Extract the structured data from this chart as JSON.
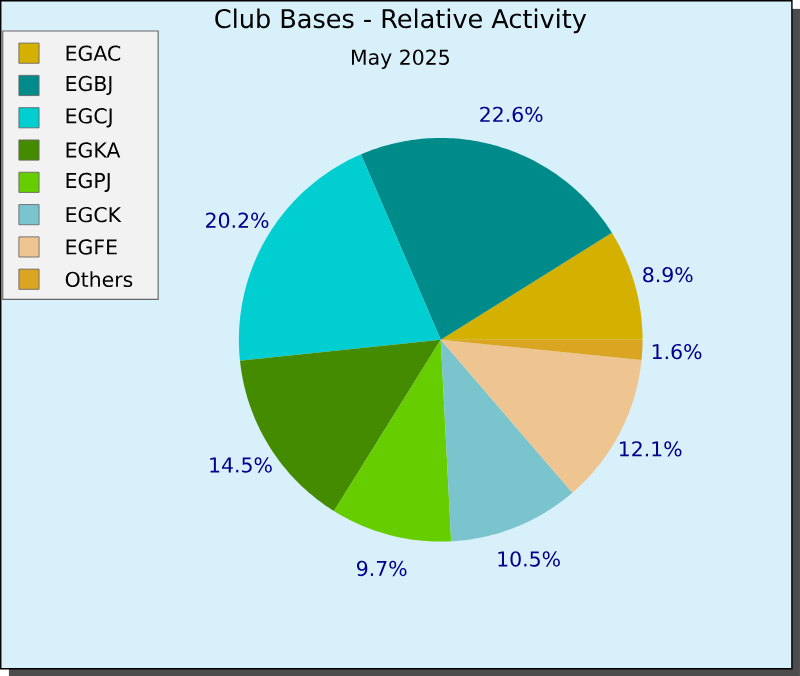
{
  "chart_data": {
    "type": "pie",
    "title": "Club Bases - Relative Activity",
    "subtitle": "May 2025",
    "categories": [
      "EGAC",
      "EGBJ",
      "EGCJ",
      "EGKA",
      "EGPJ",
      "EGCK",
      "EGFE",
      "Others"
    ],
    "values": [
      8.9,
      22.6,
      20.2,
      14.5,
      9.7,
      10.5,
      12.1,
      1.6
    ],
    "value_labels": [
      "8.9%",
      "22.6%",
      "20.2%",
      "14.5%",
      "9.7%",
      "10.5%",
      "12.1%",
      "1.6%"
    ],
    "colors": [
      "#d4b000",
      "#008b8b",
      "#00ced1",
      "#458b00",
      "#66cd00",
      "#7ac5cd",
      "#eec591",
      "#daa520"
    ],
    "legend": "top left"
  }
}
